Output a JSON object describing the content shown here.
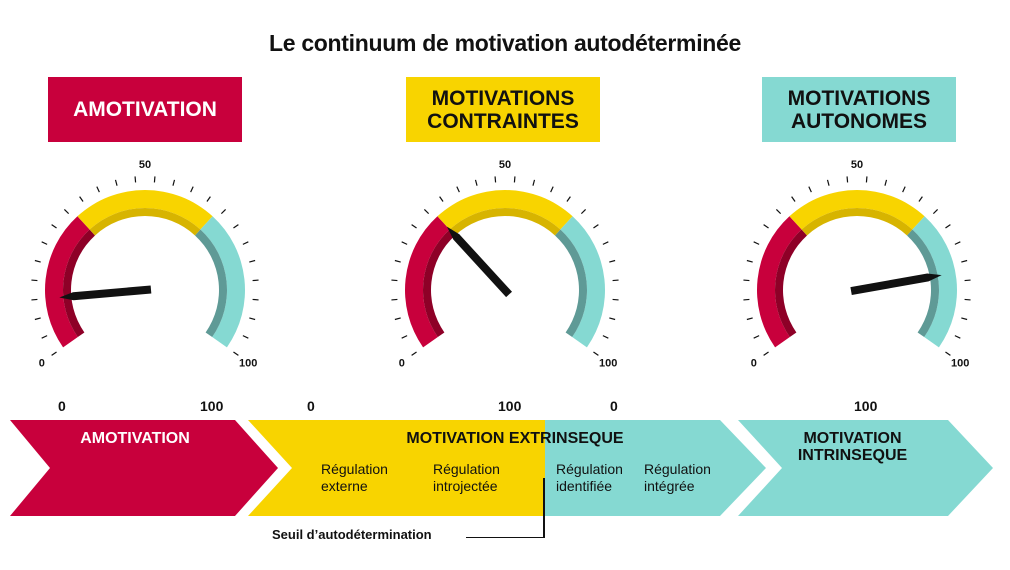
{
  "title": "Le continuum de motivation autodéterminée",
  "banners": {
    "amotivation": "AMOTIVATION",
    "contraintes": [
      "MOTIVATIONS",
      "CONTRAINTES"
    ],
    "autonomes": [
      "MOTIVATIONS",
      "AUTONOMES"
    ]
  },
  "gauges": [
    {
      "name": "amotivation",
      "value": 12,
      "min_label": "0",
      "mid_label": "50",
      "max_label": "100"
    },
    {
      "name": "contraintes",
      "value": 33,
      "min_label": "0",
      "mid_label": "50",
      "max_label": "100"
    },
    {
      "name": "autonomes",
      "value": 82,
      "min_label": "0",
      "mid_label": "50",
      "max_label": "100"
    }
  ],
  "colors": {
    "red": "#c8003c",
    "red_dark": "#8e0027",
    "yellow": "#f8d400",
    "yellow_dark": "#d7b400",
    "teal": "#85d9d2",
    "teal_dark": "#5f9a96",
    "needle": "#111111"
  },
  "scale_labels": [
    "0",
    "100",
    "0",
    "100",
    "0",
    "100"
  ],
  "continuum": {
    "amotivation": "AMOTIVATION",
    "extrinseque": "MOTIVATION EXTRINSEQUE",
    "intrinseque": [
      "MOTIVATION",
      "INTRINSEQUE"
    ],
    "regulations": [
      [
        "Régulation",
        "externe"
      ],
      [
        "Régulation",
        "introjectée"
      ],
      [
        "Régulation",
        "identifiée"
      ],
      [
        "Régulation",
        "intégrée"
      ]
    ]
  },
  "threshold_label": "Seuil d’autodétermination"
}
